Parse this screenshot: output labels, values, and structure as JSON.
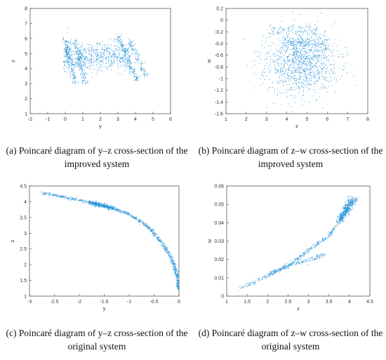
{
  "chart_data": [
    {
      "type": "scatter",
      "panel": "a",
      "xlabel": "y",
      "ylabel": "z",
      "xlim": [
        -2,
        6
      ],
      "ylim": [
        1,
        8
      ],
      "xticks": [
        "-2",
        "-1",
        "0",
        "1",
        "2",
        "3",
        "4",
        "5",
        "6"
      ],
      "yticks": [
        "1",
        "2",
        "3",
        "4",
        "5",
        "6",
        "7",
        "8"
      ],
      "color": "#1f8fd6",
      "caption": "(a)  Poincaré diagram of y–z cross-section of the improved system",
      "clusters": [
        {
          "shape": "blob",
          "center": [
            1.8,
            4.8
          ],
          "spread": [
            1.9,
            0.95
          ],
          "count": 650
        },
        {
          "shape": "arc",
          "x_at_top": 0.0,
          "x_at_bottom": 0.55,
          "y_range": [
            3.0,
            6.0
          ],
          "count": 170
        },
        {
          "shape": "arc",
          "x_at_top": 0.55,
          "x_at_bottom": 1.15,
          "y_range": [
            3.0,
            5.8
          ],
          "count": 150
        },
        {
          "shape": "arc",
          "x_at_top": 3.0,
          "x_at_bottom": 4.1,
          "y_range": [
            3.2,
            6.2
          ],
          "count": 160
        },
        {
          "shape": "arc",
          "x_at_top": 3.6,
          "x_at_bottom": 4.6,
          "y_range": [
            3.5,
            6.0
          ],
          "count": 120
        }
      ]
    },
    {
      "type": "scatter",
      "panel": "b",
      "xlabel": "z",
      "ylabel": "w",
      "xlim": [
        1,
        8
      ],
      "ylim": [
        -1.6,
        0.2
      ],
      "xticks": [
        "1",
        "2",
        "3",
        "4",
        "5",
        "6",
        "7",
        "8"
      ],
      "yticks": [
        "-1.6",
        "-1.4",
        "-1.2",
        "-1",
        "-0.8",
        "-0.6",
        "-0.4",
        "-0.2",
        "0",
        "0.2"
      ],
      "color": "#1f8fd6",
      "caption": "(b)  Poincaré diagram of z–w cross-section of the improved system",
      "clusters": [
        {
          "shape": "blob",
          "center": [
            4.7,
            -0.75
          ],
          "spread": [
            1.5,
            0.5
          ],
          "count": 1100
        },
        {
          "shape": "band",
          "x_range": [
            3.8,
            6.0
          ],
          "y": -0.38,
          "thickness": 0.05,
          "count": 160
        },
        {
          "shape": "band",
          "x_range": [
            3.0,
            5.5
          ],
          "y": -0.18,
          "thickness": 0.05,
          "count": 110
        }
      ]
    },
    {
      "type": "scatter",
      "panel": "c",
      "xlabel": "y",
      "ylabel": "z",
      "xlim": [
        -3,
        0
      ],
      "ylim": [
        1,
        4.5
      ],
      "xticks": [
        "-3",
        "-2.5",
        "-2",
        "-1.5",
        "-1",
        "-0.5",
        "0"
      ],
      "yticks": [
        "1",
        "1.5",
        "2",
        "2.5",
        "3",
        "3.5",
        "4",
        "4.5"
      ],
      "color": "#1f8fd6",
      "caption": "(c) Poincaré diagram of y–z cross-section of the original system",
      "curve": [
        [
          -2.75,
          4.28
        ],
        [
          -2.4,
          4.18
        ],
        [
          -2.0,
          4.05
        ],
        [
          -1.6,
          3.9
        ],
        [
          -1.3,
          3.78
        ],
        [
          -1.0,
          3.6
        ],
        [
          -0.7,
          3.3
        ],
        [
          -0.5,
          3.0
        ],
        [
          -0.3,
          2.6
        ],
        [
          -0.15,
          2.2
        ],
        [
          -0.06,
          1.8
        ],
        [
          -0.02,
          1.45
        ],
        [
          0.0,
          1.2
        ]
      ],
      "dense_section": {
        "x_range": [
          -1.8,
          -1.3
        ],
        "count": 260
      },
      "count": 900
    },
    {
      "type": "scatter",
      "panel": "d",
      "xlabel": "z",
      "ylabel": "w",
      "xlim": [
        1,
        4.5
      ],
      "ylim": [
        0,
        0.06
      ],
      "xticks": [
        "1",
        "1.5",
        "2",
        "2.5",
        "3",
        "3.5",
        "4",
        "4.5"
      ],
      "yticks": [
        "0",
        "0.01",
        "0.02",
        "0.03",
        "0.04",
        "0.05",
        "0.06"
      ],
      "color": "#1f8fd6",
      "caption": "(d) Poincaré diagram of z–w cross-section of the original system",
      "branches": [
        {
          "points": [
            [
              1.3,
              0.004
            ],
            [
              2.0,
              0.011
            ],
            [
              2.6,
              0.018
            ],
            [
              3.0,
              0.025
            ],
            [
              3.5,
              0.033
            ],
            [
              3.8,
              0.042
            ],
            [
              4.2,
              0.053
            ]
          ],
          "count": 450
        },
        {
          "points": [
            [
              2.0,
              0.012
            ],
            [
              2.6,
              0.017
            ],
            [
              3.1,
              0.02
            ],
            [
              3.4,
              0.023
            ]
          ],
          "count": 150
        }
      ],
      "dense_cluster": {
        "center": [
          3.92,
          0.047
        ],
        "spread": [
          0.18,
          0.005
        ],
        "count": 380
      }
    }
  ]
}
